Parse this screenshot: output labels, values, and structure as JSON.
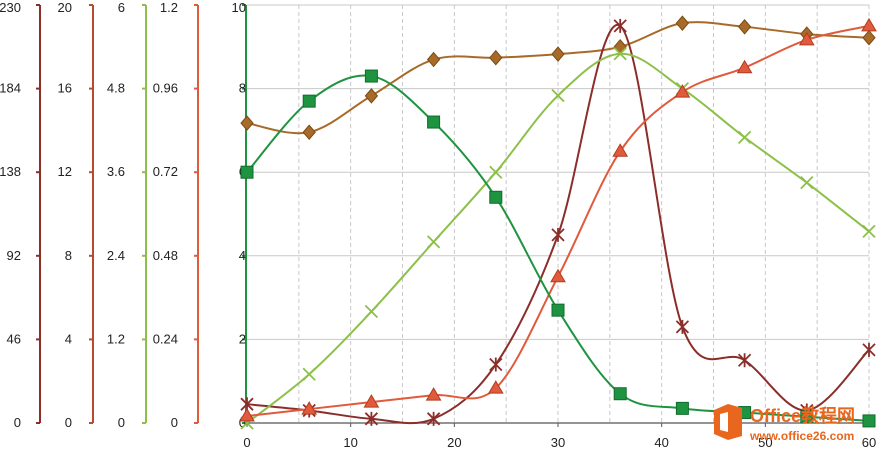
{
  "chart_data": {
    "type": "line",
    "title": "",
    "xlabel": "",
    "x_axis": {
      "min": 0,
      "max": 60,
      "ticks": [
        0,
        10,
        20,
        30,
        40,
        50,
        60
      ],
      "minor_step": 5
    },
    "grid": true,
    "legend": "none",
    "y_axes": [
      {
        "id": "a1",
        "color": "#8B2E2A",
        "min": 0,
        "max": 230,
        "ticks": [
          0,
          46,
          92,
          138,
          184,
          230
        ]
      },
      {
        "id": "a2",
        "color": "#B84A32",
        "min": 0,
        "max": 20,
        "ticks": [
          0,
          4,
          8,
          12,
          16,
          20
        ]
      },
      {
        "id": "a3",
        "color": "#8DC04A",
        "min": 0,
        "max": 6,
        "ticks": [
          0,
          1.2,
          2.4,
          3.6,
          4.8,
          6
        ]
      },
      {
        "id": "a4",
        "color": "#E05A3C",
        "min": 0,
        "max": 1.2,
        "ticks": [
          0,
          0.24,
          0.48,
          0.72,
          0.96,
          1.2
        ]
      },
      {
        "id": "a5",
        "color": "#1E9440",
        "min": 0,
        "max": 10,
        "ticks": [
          0,
          2,
          4,
          6,
          8,
          10
        ]
      }
    ],
    "series": [
      {
        "axis": "a1",
        "color": "#A86A28",
        "marker": "diamond",
        "x": [
          0,
          6,
          12,
          18,
          24,
          30,
          36,
          42,
          48,
          54,
          60
        ],
        "values": [
          165,
          160,
          180,
          200,
          201,
          203,
          207,
          220,
          218,
          214,
          212
        ]
      },
      {
        "axis": "a2",
        "color": "#8B2E2A",
        "marker": "star",
        "x": [
          0,
          6,
          12,
          18,
          24,
          30,
          36,
          42,
          48,
          54,
          60
        ],
        "values": [
          0.9,
          0.6,
          0.2,
          0.2,
          2.8,
          9.0,
          19.0,
          4.6,
          3.0,
          0.6,
          3.5
        ]
      },
      {
        "axis": "a3",
        "color": "#8DC04A",
        "marker": "x",
        "x": [
          0,
          6,
          12,
          18,
          24,
          30,
          36,
          42,
          48,
          54,
          60
        ],
        "values": [
          0.0,
          0.7,
          1.6,
          2.6,
          3.6,
          4.7,
          5.3,
          4.8,
          4.1,
          3.45,
          2.75
        ]
      },
      {
        "axis": "a4",
        "color": "#E05A3C",
        "marker": "triangle",
        "x": [
          0,
          6,
          12,
          18,
          24,
          30,
          36,
          42,
          48,
          54,
          60
        ],
        "values": [
          0.02,
          0.04,
          0.06,
          0.08,
          0.1,
          0.42,
          0.78,
          0.95,
          1.02,
          1.1,
          1.14
        ]
      },
      {
        "axis": "a5",
        "color": "#1E9440",
        "marker": "square",
        "x": [
          0,
          6,
          12,
          18,
          24,
          30,
          36,
          42,
          48,
          54,
          60
        ],
        "values": [
          6.0,
          7.7,
          8.3,
          7.2,
          5.4,
          2.7,
          0.7,
          0.35,
          0.25,
          0.15,
          0.05
        ]
      }
    ]
  },
  "watermark": {
    "brand": "Office教程网",
    "url": "www.office26.com",
    "icon": "office-logo-icon",
    "color": "#E8661E"
  }
}
